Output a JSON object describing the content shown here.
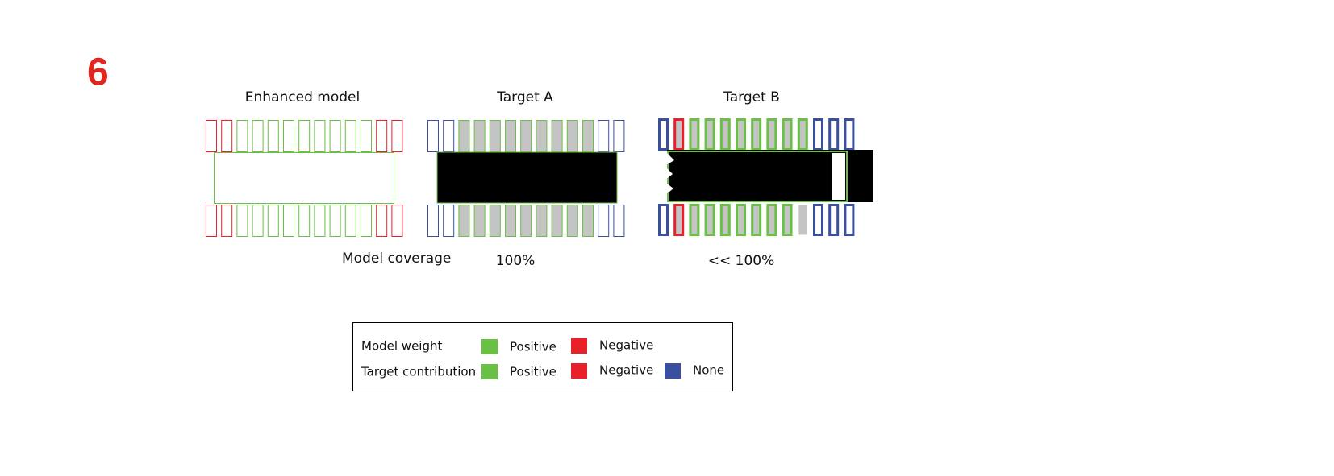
{
  "label": "6",
  "panels": [
    {
      "title": "Enhanced model"
    },
    {
      "title": "Target A",
      "coverage": "100%"
    },
    {
      "title": "Target B",
      "coverage": "<< 100%"
    }
  ],
  "coverage_label": "Model coverage",
  "legend": {
    "rows": [
      {
        "label": "Model weight",
        "items": [
          "Positive",
          "Negative"
        ]
      },
      {
        "label": "Target contribution",
        "items": [
          "Positive",
          "Negative",
          "None"
        ]
      }
    ]
  }
}
